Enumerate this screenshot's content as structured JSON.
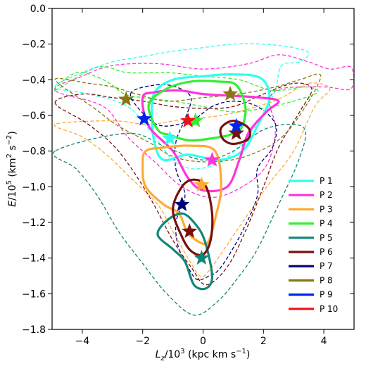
{
  "chart_data": {
    "type": "line",
    "xlabel": "L_z/10^3 (kpc km s^-1)",
    "ylabel": "E/10^5 (km^2 s^-2)",
    "xlabel_parts": {
      "base": "L",
      "sub": "z",
      "rest": "/10",
      "sup": "3",
      "units": " (kpc km s",
      "units_sup": "−1",
      "close": ")"
    },
    "ylabel_parts": {
      "base": "E",
      "rest": "/10",
      "sup": "5",
      "units": " (km",
      "units_sup1": "2",
      "mid": " s",
      "units_sup2": "−2",
      "close": ")"
    },
    "xlim": [
      -5,
      5
    ],
    "ylim": [
      -1.8,
      0.0
    ],
    "xticks": [
      -4,
      -2,
      0,
      2,
      4
    ],
    "xtick_labels": [
      "−4",
      "−2",
      "0",
      "2",
      "4"
    ],
    "yticks": [
      0.0,
      -0.2,
      -0.4,
      -0.6,
      -0.8,
      -1.0,
      -1.2,
      -1.4,
      -1.6,
      -1.8
    ],
    "ytick_labels": [
      "0.0",
      "−0.2",
      "−0.4",
      "−0.6",
      "−0.8",
      "−1.0",
      "−1.2",
      "−1.4",
      "−1.6",
      "−1.8"
    ],
    "grid": false,
    "legend_position": "lower-right",
    "series": [
      {
        "name": "P 1",
        "color": "#33ffee",
        "solid": [
          [
            -1.7,
            -0.6
          ],
          [
            -1.6,
            -0.47
          ],
          [
            -1.0,
            -0.4
          ],
          [
            0.0,
            -0.38
          ],
          [
            1.0,
            -0.37
          ],
          [
            1.9,
            -0.39
          ],
          [
            2.2,
            -0.5
          ],
          [
            1.8,
            -0.66
          ],
          [
            1.3,
            -0.8
          ],
          [
            0.5,
            -0.85
          ],
          [
            -0.5,
            -0.82
          ],
          [
            -1.3,
            -0.85
          ],
          [
            -1.6,
            -0.76
          ],
          [
            -1.7,
            -0.6
          ]
        ],
        "dashed": [
          [
            -4.9,
            -0.44
          ],
          [
            -4.0,
            -0.36
          ],
          [
            -3.0,
            -0.3
          ],
          [
            -2.0,
            -0.27
          ],
          [
            -1.0,
            -0.24
          ],
          [
            0.0,
            -0.22
          ],
          [
            1.0,
            -0.2
          ],
          [
            2.0,
            -0.2
          ],
          [
            3.0,
            -0.22
          ],
          [
            3.5,
            -0.25
          ],
          [
            3.2,
            -0.3
          ],
          [
            2.6,
            -0.32
          ],
          [
            2.4,
            -0.45
          ],
          [
            2.0,
            -0.6
          ],
          [
            1.3,
            -0.75
          ],
          [
            0.6,
            -0.86
          ],
          [
            -0.3,
            -0.9
          ],
          [
            -1.0,
            -0.85
          ],
          [
            -1.6,
            -0.72
          ],
          [
            -2.5,
            -0.55
          ],
          [
            -3.8,
            -0.48
          ],
          [
            -4.9,
            -0.44
          ]
        ],
        "star": [
          -1.1,
          -0.73
        ]
      },
      {
        "name": "P 2",
        "color": "#ff33dd",
        "solid": [
          [
            -2.0,
            -0.5
          ],
          [
            -1.6,
            -0.47
          ],
          [
            -0.8,
            -0.46
          ],
          [
            0.0,
            -0.48
          ],
          [
            1.0,
            -0.49
          ],
          [
            1.9,
            -0.5
          ],
          [
            2.5,
            -0.52
          ],
          [
            2.1,
            -0.58
          ],
          [
            1.5,
            -0.7
          ],
          [
            1.2,
            -0.85
          ],
          [
            0.8,
            -1.0
          ],
          [
            0.0,
            -1.02
          ],
          [
            -0.5,
            -0.95
          ],
          [
            -1.0,
            -0.8
          ],
          [
            -1.8,
            -0.66
          ],
          [
            -2.0,
            -0.5
          ]
        ],
        "dashed": [
          [
            -4.9,
            -0.46
          ],
          [
            -4.0,
            -0.38
          ],
          [
            -3.0,
            -0.32
          ],
          [
            -1.5,
            -0.31
          ],
          [
            0.0,
            -0.34
          ],
          [
            1.5,
            -0.31
          ],
          [
            2.5,
            -0.26
          ],
          [
            3.5,
            -0.3
          ],
          [
            4.2,
            -0.34
          ],
          [
            4.9,
            -0.33
          ],
          [
            4.9,
            -0.45
          ],
          [
            4.0,
            -0.44
          ],
          [
            2.6,
            -0.45
          ],
          [
            2.2,
            -0.52
          ],
          [
            2.4,
            -0.68
          ],
          [
            2.1,
            -0.88
          ],
          [
            1.3,
            -1.0
          ],
          [
            0.3,
            -1.06
          ],
          [
            -0.7,
            -1.0
          ],
          [
            -1.6,
            -0.86
          ],
          [
            -2.5,
            -0.72
          ],
          [
            -3.3,
            -0.55
          ],
          [
            -4.9,
            -0.46
          ]
        ],
        "star": [
          0.3,
          -0.85
        ]
      },
      {
        "name": "P 3",
        "color": "#ffaa33",
        "solid": [
          [
            -1.9,
            -0.8
          ],
          [
            -1.3,
            -0.78
          ],
          [
            -0.4,
            -0.77
          ],
          [
            0.4,
            -0.8
          ],
          [
            0.6,
            -1.0
          ],
          [
            0.4,
            -1.18
          ],
          [
            0.2,
            -1.3
          ],
          [
            0.0,
            -1.32
          ],
          [
            -0.5,
            -1.26
          ],
          [
            -0.8,
            -1.15
          ],
          [
            -1.3,
            -1.1
          ],
          [
            -1.9,
            -1.0
          ],
          [
            -2.0,
            -0.88
          ],
          [
            -1.9,
            -0.8
          ]
        ],
        "dashed": [
          [
            -4.9,
            -0.65
          ],
          [
            -4.0,
            -0.72
          ],
          [
            -3.2,
            -0.82
          ],
          [
            -2.4,
            -0.95
          ],
          [
            -1.5,
            -1.1
          ],
          [
            -1.0,
            -1.25
          ],
          [
            -0.5,
            -1.4
          ],
          [
            -0.1,
            -1.5
          ],
          [
            0.2,
            -1.47
          ],
          [
            0.7,
            -1.35
          ],
          [
            1.3,
            -1.2
          ],
          [
            2.2,
            -0.98
          ],
          [
            3.0,
            -0.8
          ],
          [
            3.7,
            -0.55
          ],
          [
            4.2,
            -0.45
          ],
          [
            3.5,
            -0.42
          ],
          [
            2.6,
            -0.5
          ],
          [
            1.8,
            -0.55
          ],
          [
            0.6,
            -0.6
          ],
          [
            -0.6,
            -0.62
          ],
          [
            -1.8,
            -0.65
          ],
          [
            -3.0,
            -0.63
          ],
          [
            -4.9,
            -0.65
          ]
        ],
        "star": [
          -0.05,
          -0.99
        ]
      },
      {
        "name": "P 4",
        "color": "#33ee33",
        "solid": [
          [
            -1.8,
            -0.54
          ],
          [
            -1.2,
            -0.45
          ],
          [
            -0.4,
            -0.41
          ],
          [
            0.5,
            -0.41
          ],
          [
            1.1,
            -0.43
          ],
          [
            1.4,
            -0.55
          ],
          [
            1.3,
            -0.66
          ],
          [
            1.0,
            -0.7
          ],
          [
            0.6,
            -0.72
          ],
          [
            -0.4,
            -0.74
          ],
          [
            -1.1,
            -0.71
          ],
          [
            -1.5,
            -0.68
          ],
          [
            -1.8,
            -0.54
          ]
        ],
        "dashed": [
          [
            -4.9,
            -0.46
          ],
          [
            -4.2,
            -0.36
          ],
          [
            -3.3,
            -0.4
          ],
          [
            -2.6,
            -0.48
          ],
          [
            -2.0,
            -0.5
          ],
          [
            -1.0,
            -0.52
          ],
          [
            0.0,
            -0.55
          ],
          [
            1.0,
            -0.58
          ],
          [
            2.0,
            -0.56
          ],
          [
            3.0,
            -0.52
          ],
          [
            3.8,
            -0.47
          ],
          [
            3.4,
            -0.44
          ],
          [
            2.3,
            -0.46
          ],
          [
            1.2,
            -0.4
          ],
          [
            0.0,
            -0.38
          ],
          [
            -1.2,
            -0.36
          ],
          [
            -2.5,
            -0.36
          ],
          [
            -3.5,
            -0.33
          ],
          [
            -4.9,
            -0.46
          ]
        ],
        "star": [
          -0.25,
          -0.63
        ]
      },
      {
        "name": "P 5",
        "color": "#118877",
        "solid": [
          [
            -1.5,
            -1.27
          ],
          [
            -1.2,
            -1.19
          ],
          [
            -0.7,
            -1.15
          ],
          [
            -0.3,
            -1.2
          ],
          [
            0.05,
            -1.3
          ],
          [
            0.3,
            -1.5
          ],
          [
            0.1,
            -1.57
          ],
          [
            -0.3,
            -1.55
          ],
          [
            -0.6,
            -1.42
          ],
          [
            -1.0,
            -1.35
          ],
          [
            -1.5,
            -1.27
          ]
        ],
        "dashed": [
          [
            -4.9,
            -0.8
          ],
          [
            -4.2,
            -0.9
          ],
          [
            -3.5,
            -1.05
          ],
          [
            -2.8,
            -1.25
          ],
          [
            -2.0,
            -1.43
          ],
          [
            -1.2,
            -1.6
          ],
          [
            -0.3,
            -1.72
          ],
          [
            0.5,
            -1.64
          ],
          [
            1.2,
            -1.5
          ],
          [
            1.8,
            -1.35
          ],
          [
            2.5,
            -1.1
          ],
          [
            3.1,
            -0.88
          ],
          [
            3.4,
            -0.7
          ],
          [
            3.0,
            -0.65
          ],
          [
            2.0,
            -0.68
          ],
          [
            1.0,
            -0.8
          ],
          [
            0.0,
            -0.85
          ],
          [
            -1.2,
            -0.78
          ],
          [
            -2.5,
            -0.7
          ],
          [
            -4.9,
            -0.8
          ]
        ],
        "star": [
          -0.05,
          -1.4
        ]
      },
      {
        "name": "P 6",
        "color": "#771111",
        "solid": [
          [
            -1.0,
            -1.13
          ],
          [
            -0.7,
            -1.0
          ],
          [
            -0.3,
            -0.96
          ],
          [
            0.1,
            -1.0
          ],
          [
            0.3,
            -1.15
          ],
          [
            0.25,
            -1.3
          ],
          [
            0.0,
            -1.38
          ],
          [
            -0.4,
            -1.36
          ],
          [
            -0.7,
            -1.28
          ],
          [
            -1.0,
            -1.13
          ]
        ],
        "solid2": [
          [
            0.6,
            -0.67
          ],
          [
            1.0,
            -0.63
          ],
          [
            1.5,
            -0.67
          ],
          [
            1.5,
            -0.73
          ],
          [
            1.0,
            -0.76
          ],
          [
            0.65,
            -0.73
          ],
          [
            0.6,
            -0.67
          ]
        ],
        "dashed": [
          [
            -4.9,
            -0.53
          ],
          [
            -4.0,
            -0.48
          ],
          [
            -3.0,
            -0.5
          ],
          [
            -2.0,
            -0.52
          ],
          [
            -1.0,
            -0.55
          ],
          [
            0.0,
            -0.56
          ],
          [
            1.0,
            -0.55
          ],
          [
            2.0,
            -0.48
          ],
          [
            3.0,
            -0.42
          ],
          [
            3.6,
            -0.45
          ],
          [
            3.2,
            -0.58
          ],
          [
            2.5,
            -0.78
          ],
          [
            2.0,
            -1.0
          ],
          [
            1.4,
            -1.25
          ],
          [
            0.8,
            -1.45
          ],
          [
            0.1,
            -1.55
          ],
          [
            -0.4,
            -1.45
          ],
          [
            -1.0,
            -1.3
          ],
          [
            -1.8,
            -1.05
          ],
          [
            -2.8,
            -0.8
          ],
          [
            -3.8,
            -0.65
          ],
          [
            -4.9,
            -0.53
          ]
        ],
        "star": [
          -0.45,
          -1.25
        ],
        "star2": [
          1.1,
          -0.7
        ]
      },
      {
        "name": "P 7",
        "color": "#000077",
        "solid": [],
        "dashed": [
          [
            -2.4,
            -0.48
          ],
          [
            -1.6,
            -0.43
          ],
          [
            -0.9,
            -0.44
          ],
          [
            -0.4,
            -0.5
          ],
          [
            -0.6,
            -0.62
          ],
          [
            -0.9,
            -0.75
          ],
          [
            -0.9,
            -0.9
          ],
          [
            -0.6,
            -1.05
          ],
          [
            -0.9,
            -1.2
          ],
          [
            -0.8,
            -1.35
          ],
          [
            -0.5,
            -1.45
          ],
          [
            -0.2,
            -1.52
          ],
          [
            0.2,
            -1.5
          ],
          [
            0.6,
            -1.45
          ],
          [
            1.3,
            -1.25
          ],
          [
            1.8,
            -1.05
          ],
          [
            1.8,
            -0.9
          ],
          [
            2.3,
            -0.78
          ],
          [
            2.4,
            -0.65
          ],
          [
            1.8,
            -0.55
          ],
          [
            1.0,
            -0.52
          ],
          [
            0.3,
            -0.55
          ],
          [
            -0.3,
            -0.62
          ],
          [
            -1.2,
            -0.66
          ],
          [
            -1.8,
            -0.62
          ],
          [
            -2.4,
            -0.48
          ]
        ],
        "star": [
          -0.7,
          -1.1
        ]
      },
      {
        "name": "P 8",
        "color": "#887711",
        "solid": [],
        "dashed": [
          [
            -4.9,
            -0.4
          ],
          [
            -3.8,
            -0.42
          ],
          [
            -3.0,
            -0.44
          ],
          [
            -2.2,
            -0.48
          ],
          [
            -1.2,
            -0.52
          ],
          [
            0.0,
            -0.5
          ],
          [
            1.2,
            -0.48
          ],
          [
            2.4,
            -0.44
          ],
          [
            3.2,
            -0.4
          ],
          [
            3.9,
            -0.38
          ],
          [
            3.2,
            -0.6
          ],
          [
            2.4,
            -0.75
          ],
          [
            1.2,
            -0.84
          ],
          [
            0.0,
            -0.86
          ],
          [
            -1.0,
            -0.83
          ],
          [
            -1.8,
            -0.75
          ],
          [
            -2.8,
            -0.66
          ],
          [
            -3.6,
            -0.56
          ],
          [
            -4.9,
            -0.4
          ]
        ],
        "star": [
          -2.55,
          -0.51
        ],
        "star2": [
          0.9,
          -0.48
        ]
      },
      {
        "name": "P 9",
        "color": "#0022ee",
        "solid": [],
        "dashed": [],
        "star": [
          -1.95,
          -0.62
        ],
        "star2": [
          1.1,
          -0.66
        ]
      },
      {
        "name": "P 10",
        "color": "#ee1111",
        "solid": [],
        "dashed": [],
        "star": [
          -0.5,
          -0.63
        ]
      }
    ]
  }
}
